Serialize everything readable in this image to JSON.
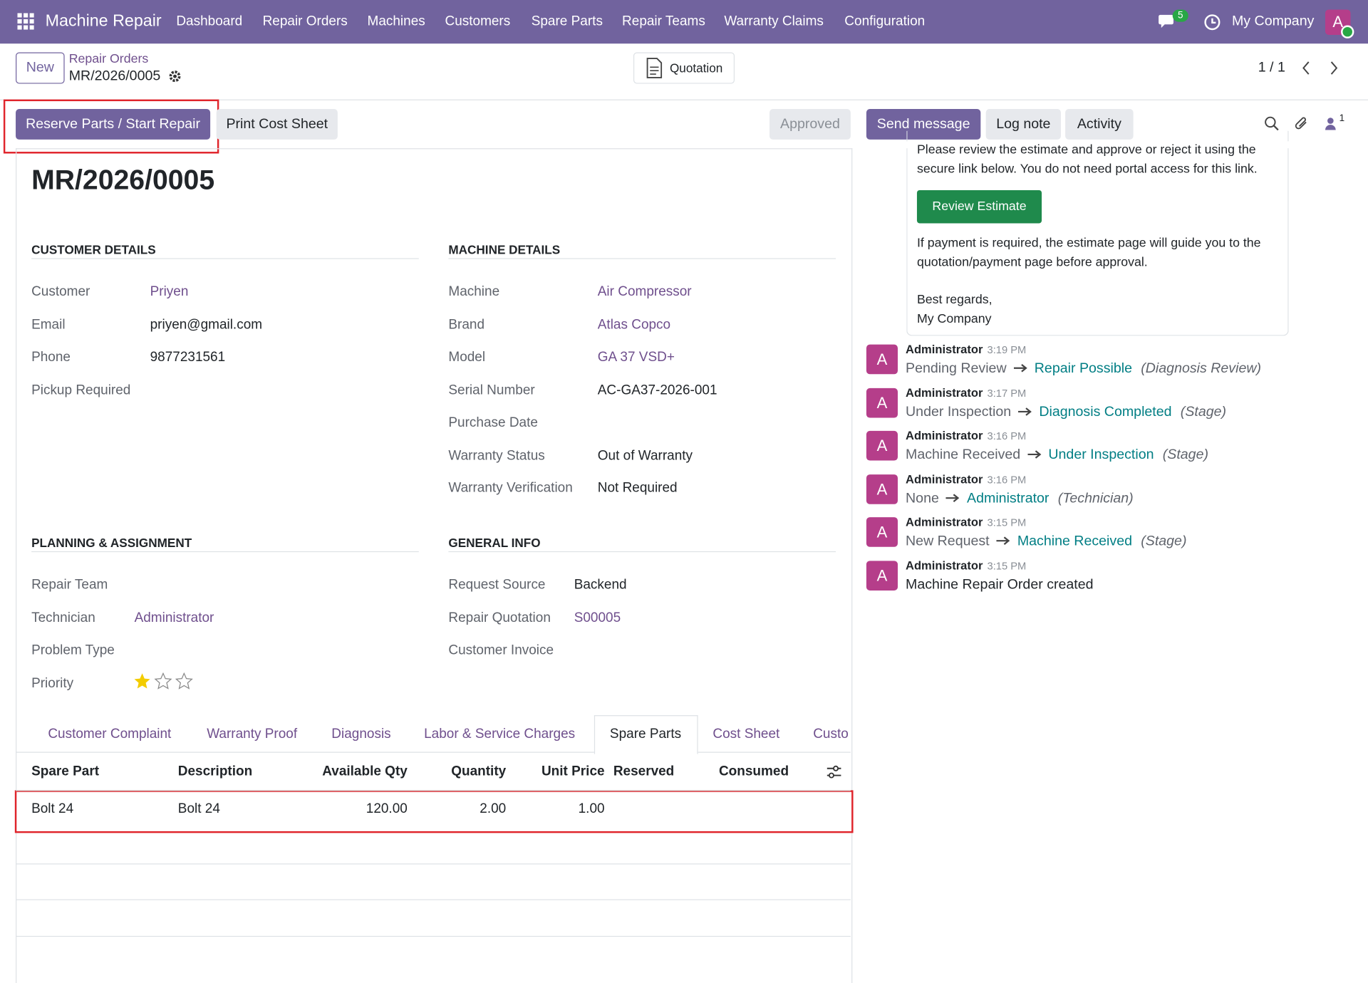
{
  "navbar": {
    "app": "Machine Repair",
    "menu": [
      "Dashboard",
      "Repair Orders",
      "Machines",
      "Customers",
      "Spare Parts",
      "Repair Teams",
      "Warranty Claims",
      "Configuration"
    ],
    "messages_count": "5",
    "company": "My Company",
    "avatar": "A"
  },
  "control_panel": {
    "new": "New",
    "breadcrumb": "Repair Orders",
    "record": "MR/2026/0005",
    "quotation": "Quotation",
    "pager": "1 / 1"
  },
  "buttons": {
    "reserve": "Reserve Parts / Start Repair",
    "print": "Print Cost Sheet",
    "status": "Approved"
  },
  "chatter_buttons": {
    "send": "Send message",
    "log": "Log note",
    "activity": "Activity",
    "followers": "1"
  },
  "form": {
    "title": "MR/2026/0005",
    "sections": [
      {
        "title": "CUSTOMER DETAILS",
        "fields": [
          {
            "label": "Customer",
            "value": "Priyen",
            "link": true
          },
          {
            "label": "Email",
            "value": "priyen@gmail.com"
          },
          {
            "label": "Phone",
            "value": "9877231561"
          },
          {
            "label": "Pickup Required"
          }
        ]
      },
      {
        "title": "MACHINE DETAILS",
        "fields": [
          {
            "label": "Machine",
            "value": "Air Compressor",
            "link": true
          },
          {
            "label": "Brand",
            "value": "Atlas Copco",
            "link": true
          },
          {
            "label": "Model",
            "value": "GA 37 VSD+",
            "link": true
          },
          {
            "label": "Serial Number",
            "value": "AC-GA37-2026-001"
          },
          {
            "label": "Purchase Date"
          },
          {
            "label": "Warranty Status",
            "value": "Out of Warranty"
          },
          {
            "label": "Warranty Verification",
            "value": "Not Required"
          }
        ]
      },
      {
        "title": "PLANNING & ASSIGNMENT",
        "fields": [
          {
            "label": "Repair Team"
          },
          {
            "label": "Technician",
            "value": "Administrator",
            "link": true
          },
          {
            "label": "Problem Type"
          },
          {
            "label": "Priority"
          }
        ]
      },
      {
        "title": "GENERAL INFO",
        "fields": [
          {
            "label": "Request Source",
            "value": "Backend"
          },
          {
            "label": "Repair Quotation",
            "value": "S00005",
            "link": true
          },
          {
            "label": "Customer Invoice"
          }
        ]
      }
    ]
  },
  "tabs": [
    "Customer Complaint",
    "Warranty Proof",
    "Diagnosis",
    "Labor & Service Charges",
    "Spare Parts",
    "Cost Sheet",
    "Custo"
  ],
  "table": {
    "headers": [
      "Spare Part",
      "Description",
      "Available Qty",
      "Quantity",
      "Unit Price",
      "Reserved",
      "Consumed"
    ],
    "rows": [
      [
        "Bolt 24",
        "Bolt 24",
        "120.00",
        "2.00",
        "1.00"
      ]
    ]
  },
  "chatter": {
    "message": {
      "lines": [
        "Please review the estimate and approve or reject it using the",
        "secure link below. You do not need portal access for this link."
      ],
      "button": "Review Estimate",
      "after": [
        "If payment is required, the estimate page will guide you to the",
        "quotation/payment page before approval."
      ],
      "closing": [
        "Best regards,",
        "My Company"
      ]
    },
    "log": [
      {
        "author": "Administrator",
        "time": "3:19 PM",
        "from": "Pending Review",
        "to": "Repair Possible",
        "field": "(Diagnosis Review)"
      },
      {
        "author": "Administrator",
        "time": "3:17 PM",
        "from": "Under Inspection",
        "to": "Diagnosis Completed",
        "field": "(Stage)"
      },
      {
        "author": "Administrator",
        "time": "3:16 PM",
        "from": "Machine Received",
        "to": "Under Inspection",
        "field": "(Stage)"
      },
      {
        "author": "Administrator",
        "time": "3:16 PM",
        "from": "None",
        "to": "Administrator",
        "field": "(Technician)"
      },
      {
        "author": "Administrator",
        "time": "3:15 PM",
        "from": "New Request",
        "to": "Machine Received",
        "field": "(Stage)"
      },
      {
        "author": "Administrator",
        "time": "3:15 PM",
        "body": "Machine Repair Order created"
      }
    ]
  }
}
